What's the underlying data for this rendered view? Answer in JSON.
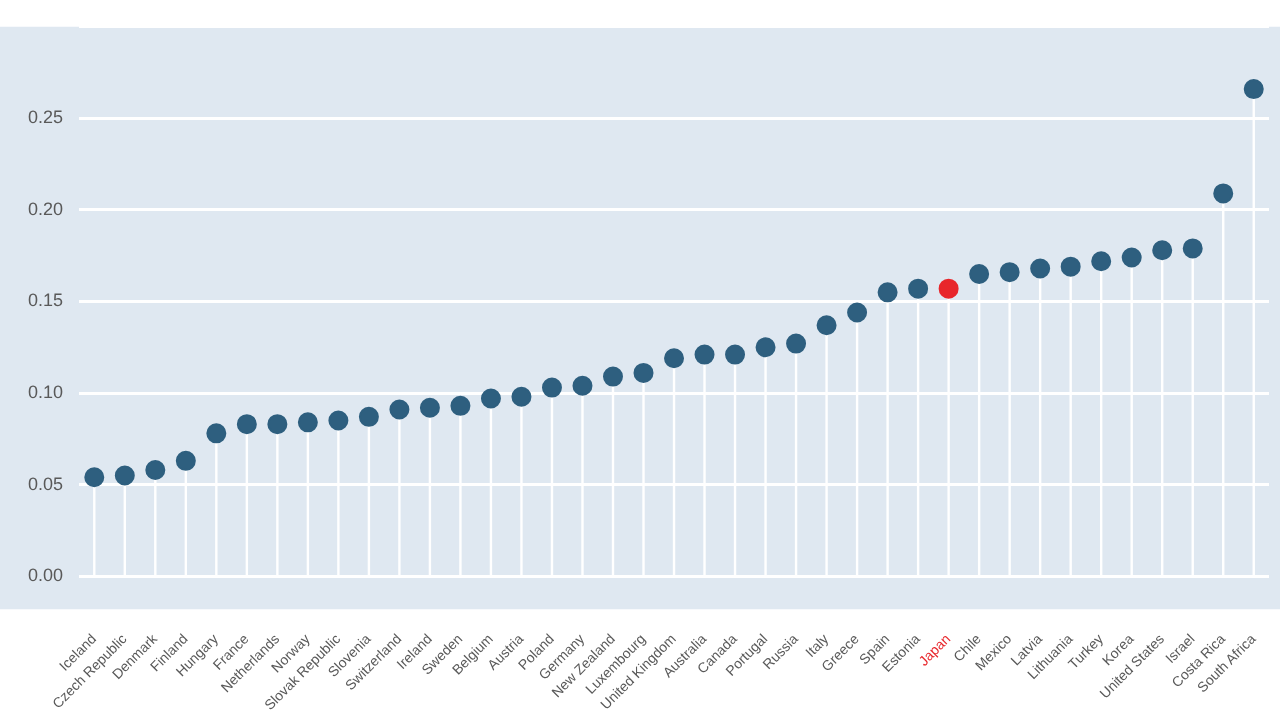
{
  "chart_data": {
    "type": "lollipop",
    "categories": [
      "Iceland",
      "Czech Republic",
      "Denmark",
      "Finland",
      "Hungary",
      "France",
      "Netherlands",
      "Norway",
      "Slovak Republic",
      "Slovenia",
      "Switzerland",
      "Ireland",
      "Sweden",
      "Belgium",
      "Austria",
      "Poland",
      "Germany",
      "New Zealand",
      "Luxembourg",
      "United Kingdom",
      "Australia",
      "Canada",
      "Portugal",
      "Russia",
      "Italy",
      "Greece",
      "Spain",
      "Estonia",
      "Japan",
      "Chile",
      "Mexico",
      "Latvia",
      "Lithuania",
      "Turkey",
      "Korea",
      "United States",
      "Israel",
      "Costa Rica",
      "South Africa"
    ],
    "values": [
      0.054,
      0.055,
      0.058,
      0.063,
      0.078,
      0.083,
      0.083,
      0.084,
      0.085,
      0.087,
      0.091,
      0.092,
      0.093,
      0.097,
      0.098,
      0.103,
      0.104,
      0.109,
      0.111,
      0.119,
      0.121,
      0.121,
      0.125,
      0.127,
      0.137,
      0.144,
      0.155,
      0.157,
      0.157,
      0.165,
      0.166,
      0.168,
      0.169,
      0.172,
      0.174,
      0.178,
      0.179,
      0.209,
      0.266
    ],
    "colors": [
      "#2e5f7f",
      "#2e5f7f",
      "#2e5f7f",
      "#2e5f7f",
      "#2e5f7f",
      "#2e5f7f",
      "#2e5f7f",
      "#2e5f7f",
      "#2e5f7f",
      "#2e5f7f",
      "#2e5f7f",
      "#2e5f7f",
      "#2e5f7f",
      "#2e5f7f",
      "#2e5f7f",
      "#2e5f7f",
      "#2e5f7f",
      "#2e5f7f",
      "#2e5f7f",
      "#2e5f7f",
      "#2e5f7f",
      "#2e5f7f",
      "#2e5f7f",
      "#2e5f7f",
      "#2e5f7f",
      "#2e5f7f",
      "#2e5f7f",
      "#2e5f7f",
      "#e8262b",
      "#2e5f7f",
      "#2e5f7f",
      "#2e5f7f",
      "#2e5f7f",
      "#2e5f7f",
      "#2e5f7f",
      "#2e5f7f",
      "#2e5f7f",
      "#2e5f7f",
      "#2e5f7f"
    ],
    "ylim": [
      -0.018,
      0.3
    ],
    "yticks": [
      {
        "value": 0,
        "label": "0.00"
      },
      {
        "value": 0.05,
        "label": "0.05"
      },
      {
        "value": 0.1,
        "label": "0.10"
      },
      {
        "value": 0.15,
        "label": "0.15"
      },
      {
        "value": 0.2,
        "label": "0.20"
      },
      {
        "value": 0.25,
        "label": "0.25"
      },
      {
        "value": 0.3,
        "label": null
      }
    ],
    "grid": "y",
    "marker": "circle",
    "legend": false
  }
}
